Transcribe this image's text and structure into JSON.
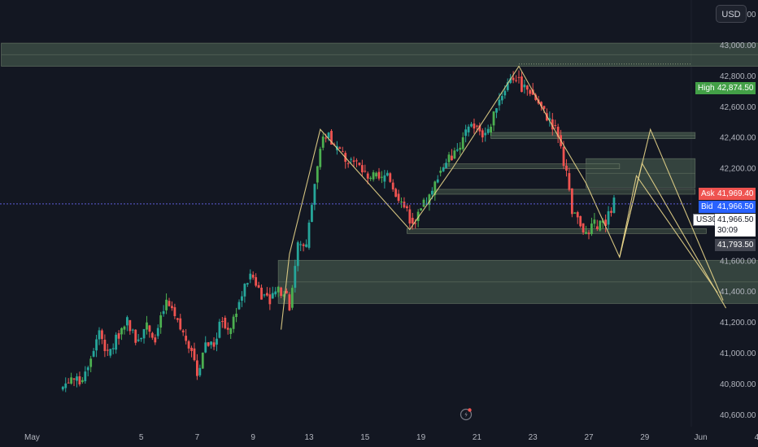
{
  "currency_button": "USD",
  "symbol": "US30",
  "price_tags": {
    "high_label": "High",
    "high_value": "42,874.50",
    "ask_label": "Ask",
    "ask_value": "41,969.40",
    "bid_label": "Bid",
    "bid_value": "41,966.50",
    "last_value": "41,966.50",
    "countdown": "30:09",
    "low_marker": "41,793.50"
  },
  "colors": {
    "background": "#131722",
    "up_candle": "#26a69a",
    "up_candle_bright": "#4caf50",
    "down_candle": "#ef5350",
    "zone_fill": "#5d7a62",
    "pattern_line": "#e8d58a",
    "high_tag": "#43a047",
    "ask_tag": "#ef5350",
    "bid_tag": "#2962ff",
    "price_line": "#5b5bd6"
  },
  "chart_data": {
    "type": "candlestick",
    "y_axis": {
      "range": [
        40520,
        43290
      ],
      "ticks": [
        "43,200.00",
        "43,000.00",
        "42,800.00",
        "42,600.00",
        "42,400.00",
        "42,200.00",
        "41,600.00",
        "41,400.00",
        "41,200.00",
        "41,000.00",
        "40,800.00",
        "40,600.00"
      ]
    },
    "x_axis": {
      "ticks": [
        "May",
        "5",
        "7",
        "9",
        "13",
        "15",
        "19",
        "21",
        "23",
        "27",
        "29",
        "Jun",
        "4"
      ]
    },
    "price_path": [
      [
        2.1,
        40760
      ],
      [
        2.5,
        40840
      ],
      [
        2.8,
        40800
      ],
      [
        3.2,
        40980
      ],
      [
        3.5,
        41150
      ],
      [
        3.8,
        40980
      ],
      [
        4.2,
        41120
      ],
      [
        4.5,
        41220
      ],
      [
        4.8,
        41080
      ],
      [
        5.2,
        41180
      ],
      [
        5.5,
        41100
      ],
      [
        5.9,
        41330
      ],
      [
        6.2,
        41220
      ],
      [
        6.5,
        41120
      ],
      [
        6.8,
        41030
      ],
      [
        7.0,
        40860
      ],
      [
        7.3,
        41070
      ],
      [
        7.6,
        41050
      ],
      [
        7.9,
        41230
      ],
      [
        8.1,
        41120
      ],
      [
        8.4,
        41280
      ],
      [
        8.8,
        41470
      ],
      [
        9.0,
        41490
      ],
      [
        9.3,
        41380
      ],
      [
        9.6,
        41350
      ],
      [
        9.8,
        41390
      ],
      [
        10.1,
        41410
      ],
      [
        10.3,
        41300
      ],
      [
        10.6,
        41700
      ],
      [
        10.9,
        41690
      ],
      [
        11.2,
        42100
      ],
      [
        11.5,
        42390
      ],
      [
        11.7,
        42440
      ],
      [
        11.9,
        42320
      ],
      [
        12.1,
        42300
      ],
      [
        12.4,
        42260
      ],
      [
        12.7,
        42230
      ],
      [
        13.0,
        42160
      ],
      [
        13.3,
        42140
      ],
      [
        13.6,
        42120
      ],
      [
        13.8,
        42170
      ],
      [
        14.1,
        42040
      ],
      [
        14.4,
        41950
      ],
      [
        14.6,
        41870
      ],
      [
        14.8,
        41850
      ],
      [
        15.1,
        41960
      ],
      [
        15.4,
        42030
      ],
      [
        15.6,
        42160
      ],
      [
        15.9,
        42240
      ],
      [
        16.1,
        42270
      ],
      [
        16.4,
        42330
      ],
      [
        16.6,
        42440
      ],
      [
        16.9,
        42470
      ],
      [
        17.2,
        42420
      ],
      [
        17.4,
        42430
      ],
      [
        17.7,
        42610
      ],
      [
        17.9,
        42680
      ],
      [
        18.2,
        42790
      ],
      [
        18.4,
        42790
      ],
      [
        18.6,
        42720
      ],
      [
        18.9,
        42700
      ],
      [
        19.2,
        42620
      ],
      [
        19.4,
        42560
      ],
      [
        19.7,
        42480
      ],
      [
        19.9,
        42420
      ],
      [
        20.2,
        42160
      ],
      [
        20.4,
        41900
      ],
      [
        20.7,
        41840
      ],
      [
        20.9,
        41770
      ],
      [
        21.2,
        41830
      ],
      [
        21.4,
        41840
      ],
      [
        21.6,
        41840
      ],
      [
        21.9,
        41980
      ]
    ],
    "zones": [
      {
        "from": 0,
        "to": 30.8,
        "low": 42860,
        "high": 43010
      },
      {
        "from": 9.9,
        "to": 31.1,
        "low": 41320,
        "high": 41600
      },
      {
        "from": 20.9,
        "to": 24.8,
        "low": 42070,
        "high": 42260
      },
      {
        "from": 17.5,
        "to": 24.8,
        "low": 42390,
        "high": 42430
      }
    ],
    "levels": [
      {
        "from": 15.8,
        "to": 22.1,
        "value": 42210
      },
      {
        "from": 15.5,
        "to": 24.8,
        "value": 42045
      },
      {
        "from": 14.5,
        "to": 25.2,
        "value": 41790
      }
    ],
    "pattern_lines": [
      [
        [
          10.0,
          41150
        ],
        [
          10.3,
          41640
        ],
        [
          11.4,
          42450
        ],
        [
          14.6,
          41800
        ],
        [
          16.1,
          42190
        ],
        [
          18.5,
          42860
        ],
        [
          19.8,
          42440
        ],
        [
          20.9,
          42100
        ],
        [
          22.1,
          41620
        ],
        [
          23.2,
          42450
        ],
        [
          25.8,
          41340
        ]
      ],
      [
        [
          22.1,
          41620
        ],
        [
          22.9,
          42230
        ],
        [
          25.9,
          41290
        ]
      ],
      [
        [
          22.1,
          41620
        ],
        [
          22.7,
          42150
        ],
        [
          25.6,
          41390
        ]
      ]
    ],
    "high": 42874.5,
    "ask": 41969.4,
    "bid": 41966.5,
    "last": 41966.5,
    "marker_low": 41793.5
  }
}
